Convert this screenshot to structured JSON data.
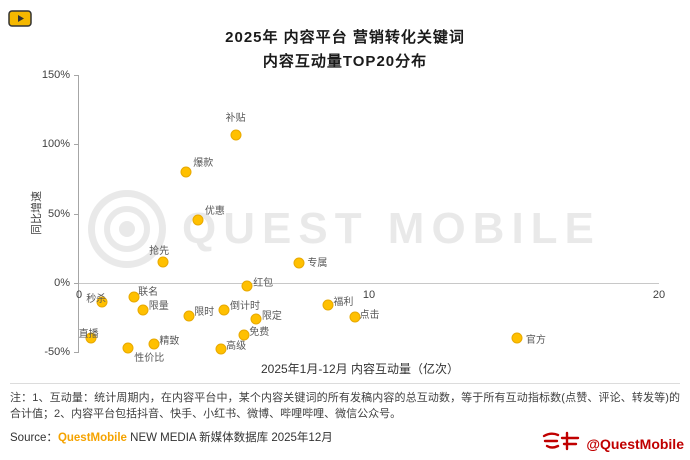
{
  "header": {
    "title_line1": "2025年 内容平台 营销转化关键词",
    "title_line2": "内容互动量TOP20分布"
  },
  "watermark": {
    "text": "QUEST MOBILE"
  },
  "icons": {
    "app_logo": "video-play-logo",
    "watermark_logo": "target-rings",
    "stamp_logo": "red-seal-scribble"
  },
  "chart_data": {
    "type": "scatter",
    "title": "2025年 内容平台 营销转化关键词 内容互动量TOP20分布",
    "xlabel": "2025年1月-12月 内容互动量（亿次）",
    "ylabel": "同比增速",
    "xlim": [
      0,
      20
    ],
    "ylim": [
      -50,
      150
    ],
    "grid": false,
    "legend": "none",
    "point_color": "#FFC000",
    "x_ticks": [
      {
        "v": 0,
        "label": "0"
      },
      {
        "v": 10,
        "label": "10"
      },
      {
        "v": 20,
        "label": "20"
      }
    ],
    "y_ticks": [
      {
        "v": 150,
        "label": "150%"
      },
      {
        "v": 100,
        "label": "100%"
      },
      {
        "v": 50,
        "label": "50%"
      },
      {
        "v": 0,
        "label": "0%"
      },
      {
        "v": -50,
        "label": "-50%"
      }
    ],
    "points": [
      {
        "label": "补贴",
        "x": 5.4,
        "y": 107,
        "label_offset": [
          -10,
          -26
        ]
      },
      {
        "label": "爆款",
        "x": 3.7,
        "y": 80,
        "label_offset": [
          7,
          -18
        ]
      },
      {
        "label": "优惠",
        "x": 4.1,
        "y": 45,
        "label_offset": [
          7,
          -18
        ]
      },
      {
        "label": "抢先",
        "x": 2.9,
        "y": 15,
        "label_offset": [
          -14,
          -20
        ]
      },
      {
        "label": "专属",
        "x": 7.6,
        "y": 14,
        "label_offset": [
          8,
          -9
        ]
      },
      {
        "label": "红包",
        "x": 5.8,
        "y": -2,
        "label_offset": [
          6,
          -12
        ]
      },
      {
        "label": "联名",
        "x": 1.9,
        "y": -10,
        "label_offset": [
          4,
          -14
        ]
      },
      {
        "label": "秒杀",
        "x": 0.8,
        "y": -14,
        "label_offset": [
          -16,
          -12
        ]
      },
      {
        "label": "限量",
        "x": 2.2,
        "y": -20,
        "label_offset": [
          6,
          -13
        ]
      },
      {
        "label": "限时",
        "x": 3.8,
        "y": -24,
        "label_offset": [
          5,
          -13
        ]
      },
      {
        "label": "倒计时",
        "x": 5.0,
        "y": -20,
        "label_offset": [
          6,
          -13
        ]
      },
      {
        "label": "限定",
        "x": 6.1,
        "y": -26,
        "label_offset": [
          6,
          -12
        ]
      },
      {
        "label": "福利",
        "x": 8.6,
        "y": -16,
        "label_offset": [
          5,
          -12
        ]
      },
      {
        "label": "点击",
        "x": 9.5,
        "y": -25,
        "label_offset": [
          5,
          -11
        ]
      },
      {
        "label": "免费",
        "x": 5.7,
        "y": -38,
        "label_offset": [
          5,
          -12
        ]
      },
      {
        "label": "精致",
        "x": 2.6,
        "y": -44,
        "label_offset": [
          5,
          -12
        ]
      },
      {
        "label": "性价比",
        "x": 1.7,
        "y": -47,
        "label_offset": [
          6,
          1
        ]
      },
      {
        "label": "高级",
        "x": 4.9,
        "y": -48,
        "label_offset": [
          5,
          -12
        ]
      },
      {
        "label": "官方",
        "x": 15.1,
        "y": -40,
        "label_offset": [
          9,
          -7
        ]
      },
      {
        "label": "直播",
        "x": 0.4,
        "y": -40,
        "label_offset": [
          -12,
          -13
        ]
      }
    ]
  },
  "notes": {
    "text": "注：1、互动量：统计周期内，在内容平台中，某个内容关键词的所有发稿内容的总互动数，等于所有互动指标数(点赞、评论、转发等)的合计值；2、内容平台包括抖音、快手、小红书、微博、哔哩哔哩、微信公众号。"
  },
  "source": {
    "prefix": "Source：",
    "brand": "QuestMobile",
    "suffix": " NEW MEDIA 新媒体数据库 2025年12月"
  },
  "stamp": {
    "handle": "@QuestMobile"
  }
}
